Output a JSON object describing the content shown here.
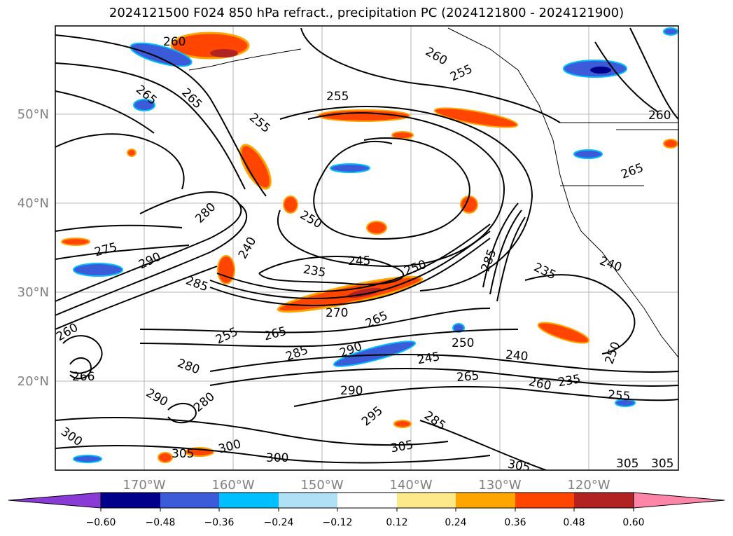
{
  "title": "2024121500 F024 850 hPa refract., precipitation PC (2024121800 - 2024121900)",
  "map": {
    "lon_labels": [
      "170°W",
      "160°W",
      "150°W",
      "140°W",
      "130°W",
      "120°W"
    ],
    "lat_labels": [
      "50°N",
      "40°N",
      "30°N",
      "20°N"
    ],
    "grid": true
  },
  "contour_labels": [
    "260",
    "265",
    "265",
    "255",
    "255",
    "260",
    "255",
    "260",
    "265",
    "280",
    "275",
    "290",
    "240",
    "250",
    "235",
    "245",
    "250",
    "285",
    "235",
    "240",
    "285",
    "270",
    "265",
    "255",
    "265",
    "290",
    "285",
    "250",
    "245",
    "240",
    "265",
    "260",
    "235",
    "255",
    "290",
    "280",
    "290",
    "295",
    "285",
    "300",
    "305",
    "300",
    "305",
    "300",
    "305",
    "250",
    "260",
    "266",
    "280",
    "305",
    "305"
  ],
  "colorbar": {
    "colors": [
      "#8a3bd6",
      "#00008b",
      "#3b5bd9",
      "#00bfff",
      "#b0e0f6",
      "#ffffff",
      "#fde98a",
      "#ffa500",
      "#ff4500",
      "#b22222",
      "#ff85a8"
    ],
    "tick_labels": [
      "−0.60",
      "−0.48",
      "−0.36",
      "−0.24",
      "−0.12",
      "0.12",
      "0.24",
      "0.36",
      "0.48",
      "0.60"
    ]
  }
}
